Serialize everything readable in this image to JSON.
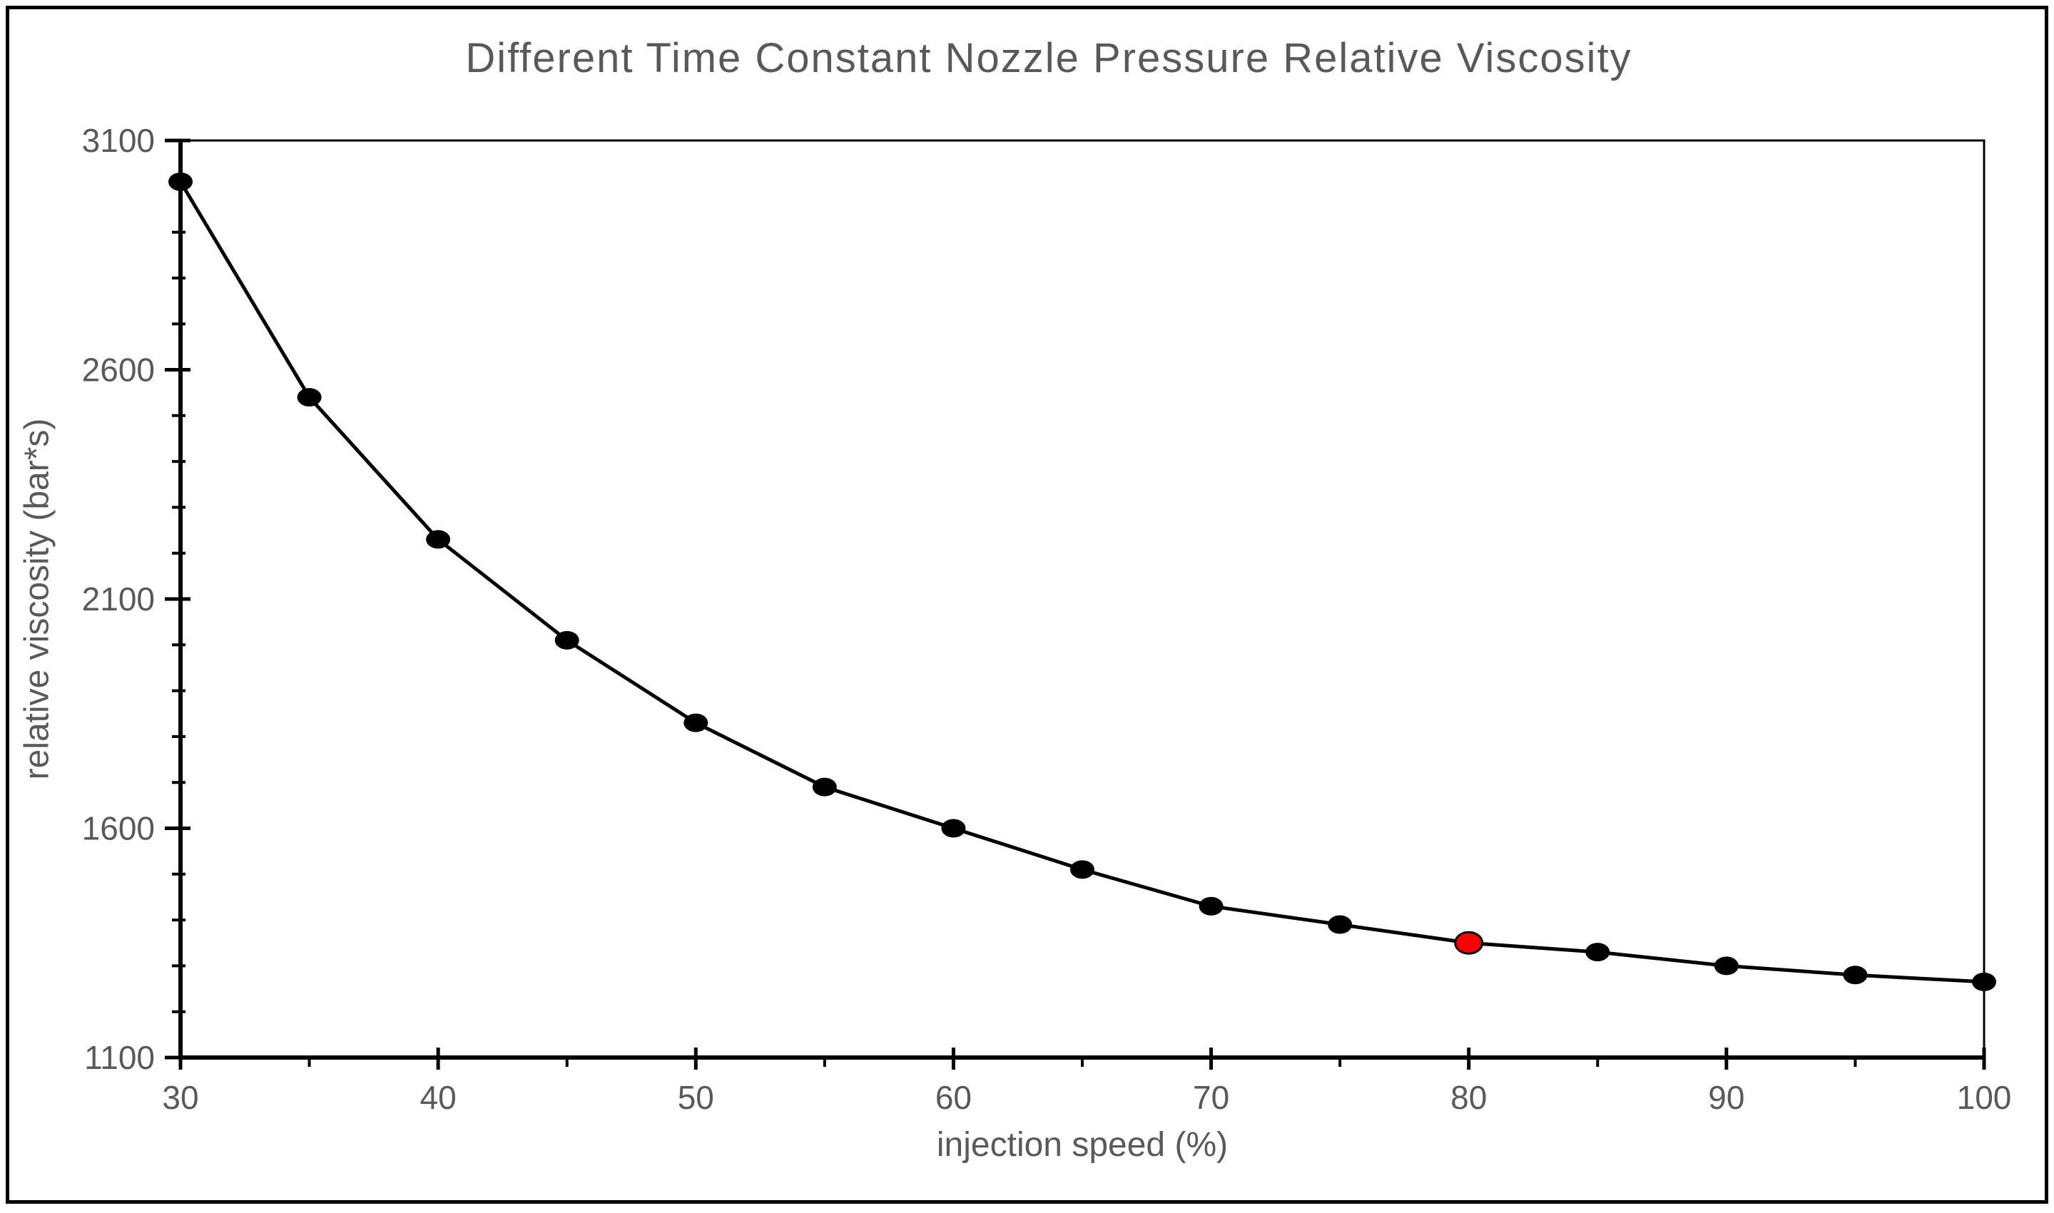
{
  "chart_data": {
    "type": "line",
    "title": "Different Time Constant Nozzle Pressure Relative Viscosity",
    "xlabel": "injection speed (%)",
    "ylabel": "relative viscosity (bar*s)",
    "x": [
      30,
      35,
      40,
      45,
      50,
      55,
      60,
      65,
      70,
      75,
      80,
      85,
      90,
      95,
      100
    ],
    "y": [
      3010,
      2540,
      2230,
      2010,
      1830,
      1690,
      1600,
      1510,
      1430,
      1390,
      1350,
      1330,
      1300,
      1280,
      1265
    ],
    "series_name": "nozzle pressure relative viscosity",
    "highlight_index": 10,
    "highlight_x": 80,
    "highlight_y": 1350,
    "xlim": [
      30,
      100
    ],
    "ylim": [
      1100,
      3100
    ],
    "x_major_ticks": [
      30,
      40,
      50,
      60,
      70,
      80,
      90,
      100
    ],
    "x_minor_ticks": [
      35,
      45,
      55,
      65,
      75,
      85,
      95
    ],
    "y_major_ticks": [
      1100,
      1600,
      2100,
      2600,
      3100
    ],
    "y_minor_ticks": [
      1200,
      1300,
      1400,
      1500,
      1700,
      1800,
      1900,
      2000,
      2200,
      2300,
      2400,
      2500,
      2700,
      2800,
      2900,
      3000
    ],
    "grid": "off",
    "legend": "none",
    "frame": "full-box",
    "colors": {
      "line": "#000000",
      "marker": "#000000",
      "highlight_fill": "#ff0000",
      "highlight_stroke": "#000000",
      "axis": "#000000",
      "text": "#595959",
      "background": "#ffffff",
      "border": "#000000"
    }
  }
}
